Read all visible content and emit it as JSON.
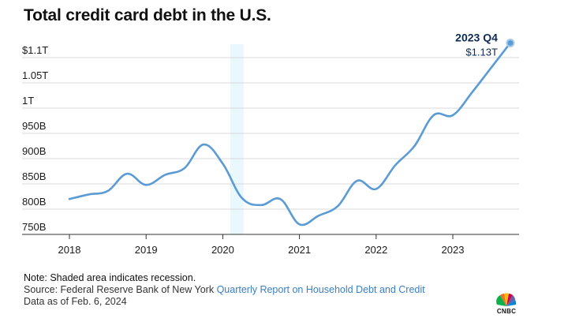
{
  "title": "Total credit card debt in the U.S.",
  "chart_data": {
    "type": "line",
    "title": "Total credit card debt in the U.S.",
    "xlabel": "",
    "ylabel": "",
    "x_unit": "year (fractional)",
    "xlim": [
      2017.75,
      2024.0
    ],
    "ylim": [
      740,
      1130
    ],
    "yticks": [
      750,
      800,
      850,
      900,
      950,
      1000,
      1050,
      1100
    ],
    "ytick_labels": [
      "750B",
      "800B",
      "850B",
      "900B",
      "950B",
      "1T",
      "1.05T",
      "$1.1T"
    ],
    "xticks": [
      2018,
      2019,
      2020,
      2021,
      2022,
      2023
    ],
    "xtick_labels": [
      "2018",
      "2019",
      "2020",
      "2021",
      "2022",
      "2023"
    ],
    "grid": "horizontal",
    "recession_shading": [
      2020.1,
      2020.27
    ],
    "series": [
      {
        "x": [
          2018.0,
          2018.25,
          2018.5,
          2018.75,
          2019.0,
          2019.25,
          2019.5,
          2019.75,
          2020.0,
          2020.25,
          2020.5,
          2020.75,
          2021.0,
          2021.25,
          2021.5,
          2021.75,
          2022.0,
          2022.25,
          2022.5,
          2022.75,
          2023.0,
          2023.25,
          2023.5,
          2023.75
        ],
        "y": [
          820,
          829,
          836,
          870,
          848,
          868,
          881,
          928,
          890,
          822,
          808,
          820,
          770,
          787,
          806,
          856,
          840,
          887,
          925,
          986,
          986,
          1031,
          1080,
          1129
        ]
      }
    ],
    "annotation": {
      "period": "2023 Q4",
      "value": "$1.13T",
      "x": 2023.75,
      "y": 1129
    },
    "colors": {
      "line": "#5b9bd5",
      "recession": "#e8f8fd",
      "grid": "#d9d9d9",
      "axis": "#333333"
    }
  },
  "notes": {
    "note": "Note: Shaded area indicates recession.",
    "source_prefix": "Source: Federal Reserve Bank of New York ",
    "source_link": "Quarterly Report on Household Debt and Credit",
    "data_as_of": "Data as of Feb. 6, 2024"
  },
  "logo": {
    "text": "CNBC",
    "icon": "nbc-peacock-icon"
  }
}
